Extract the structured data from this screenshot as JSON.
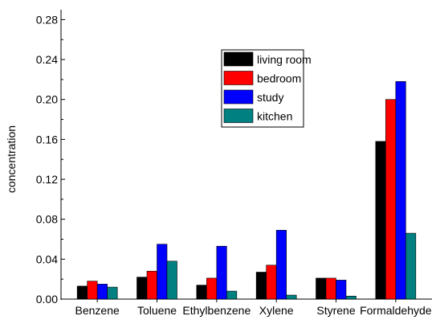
{
  "chart_data": {
    "type": "bar",
    "title": "",
    "xlabel": "",
    "ylabel": "concentration",
    "ylim": [
      0,
      0.29
    ],
    "yticks": [
      "0.00",
      "0.04",
      "0.08",
      "0.12",
      "0.16",
      "0.20",
      "0.24",
      "0.28"
    ],
    "grid": false,
    "legend": "top-right",
    "categories": [
      "Benzene",
      "Toluene",
      "Ethylbenzene",
      "Xylene",
      "Styrene",
      "Formaldehyde"
    ],
    "series": [
      {
        "name": "living room",
        "color": "#000000",
        "values": [
          0.013,
          0.022,
          0.014,
          0.027,
          0.021,
          0.158
        ]
      },
      {
        "name": "bedroom",
        "color": "#ff0000",
        "values": [
          0.018,
          0.028,
          0.021,
          0.034,
          0.021,
          0.2
        ]
      },
      {
        "name": "study",
        "color": "#0000ff",
        "values": [
          0.015,
          0.055,
          0.053,
          0.069,
          0.019,
          0.218
        ]
      },
      {
        "name": "kitchen",
        "color": "#008080",
        "values": [
          0.012,
          0.038,
          0.008,
          0.004,
          0.003,
          0.066
        ]
      }
    ]
  }
}
